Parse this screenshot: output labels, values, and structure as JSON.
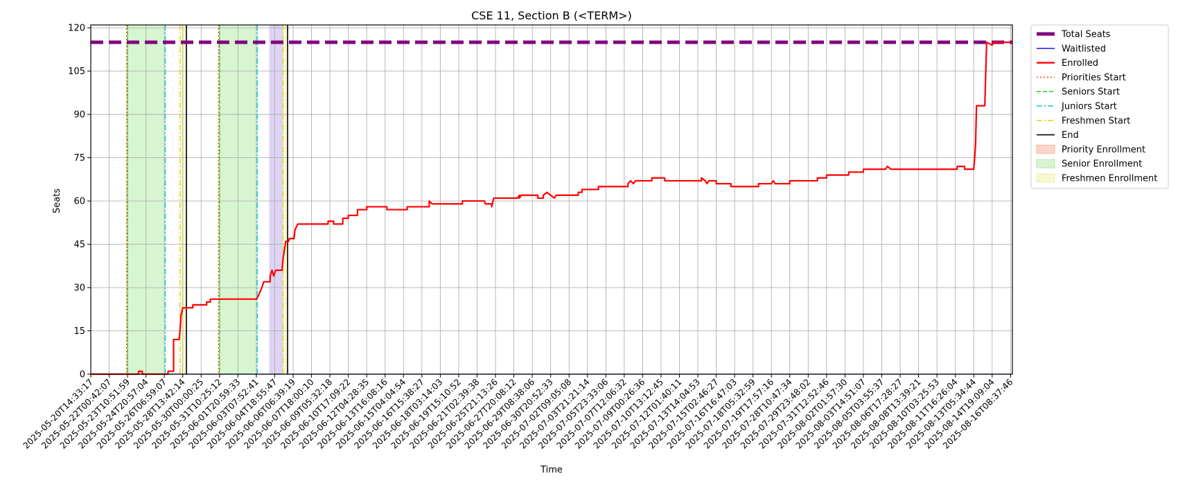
{
  "chart_data": {
    "type": "line",
    "title": "CSE 11, Section B (<TERM>)",
    "xlabel": "Time",
    "ylabel": "Seats",
    "ylim": [
      0,
      121
    ],
    "y_ticks": [
      0,
      15,
      30,
      45,
      60,
      75,
      90,
      105,
      120
    ],
    "x_tick_labels": [
      "2025-05-20T14:33:17",
      "2025-05-22T00:42:07",
      "2025-05-23T10:51:59",
      "2025-05-24T20:57:04",
      "2025-05-26T06:59:07",
      "2025-05-28T13:42:14",
      "2025-05-30T00:00:25",
      "2025-05-31T10:25:12",
      "2025-06-01T20:59:33",
      "2025-06-03T07:52:41",
      "2025-06-04T18:55:47",
      "2025-06-06T06:39:19",
      "2025-06-07T18:00:10",
      "2025-06-09T05:32:18",
      "2025-06-10T17:09:22",
      "2025-06-12T04:28:35",
      "2025-06-13T16:08:16",
      "2025-06-15T04:04:54",
      "2025-06-16T15:38:27",
      "2025-06-18T03:14:03",
      "2025-06-19T15:10:52",
      "2025-06-21T02:39:38",
      "2025-06-25T21:13:26",
      "2025-06-27T20:08:12",
      "2025-06-29T08:38:06",
      "2025-06-30T20:52:33",
      "2025-07-02T09:05:08",
      "2025-07-03T21:21:14",
      "2025-07-05T23:33:06",
      "2025-07-07T12:06:32",
      "2025-07-09T00:26:36",
      "2025-07-10T13:12:45",
      "2025-07-12T01:40:11",
      "2025-07-13T14:04:53",
      "2025-07-15T02:46:27",
      "2025-07-16T16:47:03",
      "2025-07-18T05:32:59",
      "2025-07-19T17:57:16",
      "2025-07-28T10:47:34",
      "2025-07-29T23:48:02",
      "2025-07-31T12:52:46",
      "2025-08-02T01:57:30",
      "2025-08-03T14:51:07",
      "2025-08-05T03:55:37",
      "2025-08-06T17:28:27",
      "2025-08-08T13:39:21",
      "2025-08-10T03:25:53",
      "2025-08-11T16:26:04",
      "2025-08-13T05:34:44",
      "2025-08-14T19:09:04",
      "2025-08-16T08:37:46"
    ],
    "x_range": [
      0,
      50.1
    ],
    "grid": true,
    "legend_position": "outside-right",
    "legend": [
      "Total Seats",
      "Waitlisted",
      "Enrolled",
      "Priorities Start",
      "Seniors Start",
      "Juniors Start",
      "Freshmen Start",
      "End",
      "Priority Enrollment",
      "Senior Enrollment",
      "Freshmen Enrollment"
    ],
    "total_seats": 115,
    "waitlisted": [
      [
        0,
        0
      ],
      [
        50.1,
        0
      ]
    ],
    "enrolled": [
      [
        0,
        0
      ],
      [
        2.6,
        0
      ],
      [
        2.6,
        1
      ],
      [
        2.8,
        1
      ],
      [
        2.8,
        0
      ],
      [
        4.2,
        0
      ],
      [
        4.2,
        1
      ],
      [
        4.5,
        1
      ],
      [
        4.5,
        12
      ],
      [
        4.8,
        12
      ],
      [
        4.85,
        15
      ],
      [
        4.9,
        20
      ],
      [
        5.0,
        23
      ],
      [
        5.55,
        23
      ],
      [
        5.55,
        24
      ],
      [
        6.3,
        24
      ],
      [
        6.3,
        25
      ],
      [
        6.5,
        25
      ],
      [
        6.5,
        26
      ],
      [
        9.0,
        26
      ],
      [
        9.1,
        27
      ],
      [
        9.3,
        30
      ],
      [
        9.4,
        32
      ],
      [
        9.75,
        32
      ],
      [
        9.75,
        34
      ],
      [
        9.85,
        36
      ],
      [
        9.95,
        34
      ],
      [
        10.05,
        36
      ],
      [
        10.4,
        36
      ],
      [
        10.45,
        40
      ],
      [
        10.55,
        44
      ],
      [
        10.6,
        46
      ],
      [
        10.75,
        46
      ],
      [
        10.8,
        47
      ],
      [
        11.05,
        47
      ],
      [
        11.1,
        50
      ],
      [
        11.25,
        52
      ],
      [
        12.9,
        52
      ],
      [
        12.9,
        53
      ],
      [
        13.2,
        53
      ],
      [
        13.2,
        52
      ],
      [
        13.7,
        52
      ],
      [
        13.7,
        54
      ],
      [
        14.0,
        54
      ],
      [
        14.0,
        55
      ],
      [
        14.5,
        55
      ],
      [
        14.5,
        57
      ],
      [
        15.0,
        57
      ],
      [
        15.0,
        58
      ],
      [
        16.1,
        58
      ],
      [
        16.1,
        57
      ],
      [
        17.2,
        57
      ],
      [
        17.2,
        58
      ],
      [
        18.4,
        58
      ],
      [
        18.4,
        60
      ],
      [
        18.55,
        59
      ],
      [
        20.2,
        59
      ],
      [
        20.2,
        60
      ],
      [
        21.4,
        60
      ],
      [
        21.45,
        59
      ],
      [
        21.8,
        59
      ],
      [
        21.8,
        58
      ],
      [
        21.9,
        61
      ],
      [
        23.2,
        61
      ],
      [
        23.3,
        62
      ],
      [
        23.3,
        61
      ],
      [
        23.4,
        62
      ],
      [
        24.3,
        62
      ],
      [
        24.3,
        61
      ],
      [
        24.6,
        61
      ],
      [
        24.6,
        62
      ],
      [
        24.8,
        63
      ],
      [
        25.0,
        62
      ],
      [
        25.2,
        61
      ],
      [
        25.3,
        62
      ],
      [
        26.5,
        62
      ],
      [
        26.5,
        63
      ],
      [
        26.7,
        63
      ],
      [
        26.7,
        64
      ],
      [
        27.6,
        64
      ],
      [
        27.6,
        65
      ],
      [
        29.2,
        65
      ],
      [
        29.2,
        66
      ],
      [
        29.35,
        67
      ],
      [
        29.5,
        66
      ],
      [
        29.6,
        67
      ],
      [
        30.5,
        67
      ],
      [
        30.5,
        68
      ],
      [
        31.2,
        68
      ],
      [
        31.2,
        67
      ],
      [
        33.2,
        67
      ],
      [
        33.2,
        68
      ],
      [
        33.4,
        67
      ],
      [
        33.5,
        66
      ],
      [
        33.6,
        67
      ],
      [
        34.0,
        67
      ],
      [
        34.0,
        66
      ],
      [
        34.8,
        66
      ],
      [
        34.8,
        65
      ],
      [
        36.3,
        65
      ],
      [
        36.3,
        66
      ],
      [
        37.0,
        66
      ],
      [
        37.1,
        67
      ],
      [
        37.2,
        66
      ],
      [
        38.0,
        66
      ],
      [
        38.0,
        67
      ],
      [
        39.5,
        67
      ],
      [
        39.5,
        68
      ],
      [
        40.0,
        68
      ],
      [
        40.0,
        69
      ],
      [
        41.2,
        69
      ],
      [
        41.2,
        70
      ],
      [
        42.0,
        70
      ],
      [
        42.0,
        71
      ],
      [
        43.2,
        71
      ],
      [
        43.3,
        72
      ],
      [
        43.5,
        71
      ],
      [
        47.1,
        71
      ],
      [
        47.1,
        72
      ],
      [
        47.5,
        72
      ],
      [
        47.5,
        71
      ],
      [
        48.0,
        71
      ],
      [
        48.05,
        75
      ],
      [
        48.1,
        80
      ],
      [
        48.15,
        93
      ],
      [
        48.6,
        93
      ],
      [
        48.7,
        115
      ],
      [
        49.0,
        114
      ],
      [
        49.1,
        115
      ],
      [
        50.1,
        115
      ]
    ],
    "priorities_start": [
      1.95,
      6.95
    ],
    "seniors_start": [
      2.0,
      7.0
    ],
    "juniors_start": [
      4.05,
      9.05
    ],
    "freshmen_start": [
      4.85,
      10.45
    ],
    "end": [
      5.2,
      10.7
    ],
    "priority_enrollment_spans": [
      [
        1.95,
        2.0
      ],
      [
        6.95,
        7.0
      ]
    ],
    "senior_enrollment_spans": [
      [
        2.0,
        4.05
      ],
      [
        7.0,
        9.05
      ]
    ],
    "junior_enrollment_spans": [
      [
        9.7,
        10.45
      ]
    ],
    "freshmen_enrollment_spans": [
      [
        4.85,
        5.2
      ],
      [
        10.45,
        10.7
      ]
    ],
    "colors": {
      "total_seats": "#800080",
      "waitlisted": "#0000ff",
      "enrolled": "#ff0000",
      "priorities_start": "#ff4500",
      "seniors_start": "#32cd32",
      "juniors_start": "#00ced1",
      "freshmen_start": "#e6d51a",
      "end": "#000000",
      "priority_fill": "#fbd5c8",
      "senior_fill": "#d7f5d0",
      "junior_fill": "#dcd3f5",
      "freshmen_fill": "#f8f8d0"
    }
  }
}
